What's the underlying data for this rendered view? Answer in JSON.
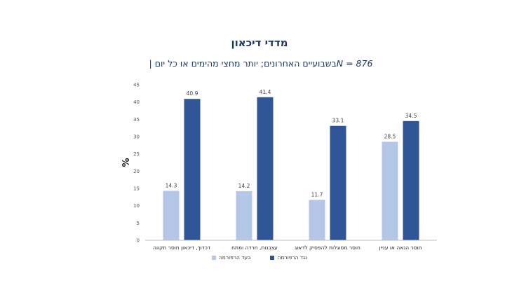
{
  "chart_data": {
    "type": "bar",
    "title": "מדדי דיכאון",
    "subtitle_prefix": "בשבועיים האחרונים; יותר מחצי מהימים או כל יום | ",
    "subtitle_n": "N = 876",
    "ylabel": "%",
    "ylim": [
      0,
      45
    ],
    "yticks": [
      0,
      5,
      10,
      15,
      20,
      25,
      30,
      35,
      40,
      45
    ],
    "categories": [
      "דכדוך, דיכאון חוסר תקווה",
      "עצבנות, חרדה ומתח",
      "חוסר מסוגלות להפסיק לדאוג",
      "חוסר הנאה או עניין"
    ],
    "series": [
      {
        "name": "בעד הרפורמה",
        "color": "#b4c7e7",
        "values": [
          14.3,
          14.2,
          11.7,
          28.5
        ]
      },
      {
        "name": "נגד הרפורמה",
        "color": "#2f5597",
        "values": [
          40.9,
          41.4,
          33.1,
          34.5
        ]
      }
    ],
    "legend": "bottom"
  }
}
